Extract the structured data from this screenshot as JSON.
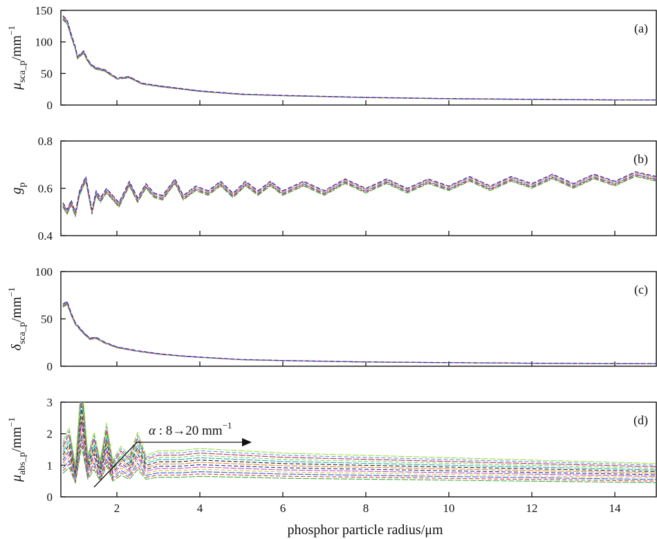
{
  "chart_data": [
    {
      "panel": "(a)",
      "type": "line",
      "ylabel": {
        "base": "μ",
        "sub": "sca_p",
        "unit": "/mm",
        "sup": "−1"
      },
      "ylim": [
        0,
        150
      ],
      "yticks": [
        0,
        50,
        100,
        150
      ],
      "xlim": [
        0.65,
        15
      ],
      "xticks": [
        2,
        4,
        6,
        8,
        10,
        12,
        14
      ],
      "grid": false,
      "series": [
        {
          "x": [
            0.7,
            0.8,
            0.9,
            1.0,
            1.05,
            1.1,
            1.2,
            1.3,
            1.4,
            1.5,
            1.7,
            2.0,
            2.3,
            2.6,
            3.0,
            3.5,
            4.0,
            5.0,
            6.0,
            8.0,
            10.0,
            12.0,
            14.0,
            15.0
          ],
          "y": [
            138,
            132,
            110,
            90,
            75,
            78,
            84,
            70,
            62,
            58,
            55,
            42,
            44,
            34,
            30,
            26,
            22,
            17,
            15,
            12,
            10,
            9,
            8,
            8
          ]
        }
      ]
    },
    {
      "panel": "(b)",
      "type": "line",
      "ylabel": {
        "base": "g",
        "sub": "p",
        "unit": "",
        "sup": ""
      },
      "ylim": [
        0.4,
        0.8
      ],
      "yticks": [
        0.4,
        0.6,
        0.8
      ],
      "ytick_labels": [
        "0.4",
        "0.6",
        "0.8"
      ],
      "xlim": [
        0.65,
        15
      ],
      "xticks": [
        2,
        4,
        6,
        8,
        10,
        12,
        14
      ],
      "grid": false,
      "series": [
        {
          "x": [
            0.7,
            0.8,
            0.9,
            1.0,
            1.1,
            1.25,
            1.4,
            1.5,
            1.6,
            1.75,
            1.9,
            2.05,
            2.3,
            2.5,
            2.7,
            2.9,
            3.1,
            3.4,
            3.6,
            3.9,
            4.2,
            4.5,
            4.8,
            5.1,
            5.4,
            5.7,
            6.0,
            6.5,
            7.0,
            7.5,
            8.0,
            8.5,
            9.0,
            9.5,
            10.0,
            10.5,
            11.0,
            11.5,
            12.0,
            12.5,
            13.0,
            13.5,
            14.0,
            14.5,
            15.0
          ],
          "y": [
            0.53,
            0.5,
            0.54,
            0.49,
            0.58,
            0.64,
            0.5,
            0.58,
            0.55,
            0.59,
            0.56,
            0.53,
            0.62,
            0.55,
            0.61,
            0.57,
            0.56,
            0.63,
            0.56,
            0.6,
            0.58,
            0.62,
            0.57,
            0.62,
            0.58,
            0.62,
            0.58,
            0.62,
            0.58,
            0.63,
            0.59,
            0.63,
            0.59,
            0.63,
            0.6,
            0.64,
            0.6,
            0.64,
            0.61,
            0.65,
            0.61,
            0.65,
            0.62,
            0.66,
            0.64
          ]
        }
      ]
    },
    {
      "panel": "(c)",
      "type": "line",
      "ylabel": {
        "base": "δ",
        "sub": "sca_p",
        "unit": "/mm",
        "sup": "−1"
      },
      "ylim": [
        0,
        100
      ],
      "yticks": [
        0,
        50,
        100
      ],
      "xlim": [
        0.65,
        15
      ],
      "xticks": [
        2,
        4,
        6,
        8,
        10,
        12,
        14
      ],
      "grid": false,
      "series": [
        {
          "x": [
            0.7,
            0.8,
            0.9,
            1.0,
            1.1,
            1.2,
            1.35,
            1.5,
            1.7,
            2.0,
            2.5,
            3.0,
            3.5,
            4.0,
            5.0,
            6.0,
            8.0,
            10.0,
            12.0,
            14.0,
            15.0
          ],
          "y": [
            64,
            67,
            55,
            45,
            40,
            35,
            29,
            30,
            25,
            20,
            16,
            13,
            11,
            9.5,
            7,
            6,
            4.5,
            3.8,
            3.2,
            2.8,
            2.6
          ]
        }
      ]
    },
    {
      "panel": "(d)",
      "type": "line",
      "ylabel": {
        "base": "μ",
        "sub": "abs_p",
        "unit": "/mm",
        "sup": "−1"
      },
      "xlabel": "phosphor particle radius/μm",
      "ylim": [
        0,
        3
      ],
      "yticks": [
        0,
        1,
        2,
        3
      ],
      "xlim": [
        0.65,
        15
      ],
      "xticks": [
        2,
        4,
        6,
        8,
        10,
        12,
        14
      ],
      "grid": false,
      "annotation": {
        "text": "α : 8→20 mm",
        "sup": "−1"
      },
      "series_range": {
        "from_alpha": 8,
        "to_alpha": 20
      },
      "series": [
        {
          "x": [
            0.7,
            0.85,
            1.0,
            1.15,
            1.3,
            1.45,
            1.6,
            1.75,
            1.9,
            2.1,
            2.3,
            2.5,
            2.7,
            3.0,
            3.5,
            4.0,
            5.0,
            6.0,
            8.0,
            10.0,
            12.0,
            14.0,
            15.0
          ],
          "y": [
            1.2,
            1.5,
            0.7,
            2.6,
            0.9,
            1.4,
            0.8,
            1.6,
            0.8,
            1.1,
            0.9,
            1.4,
            0.9,
            1.0,
            1.0,
            1.05,
            1.0,
            0.95,
            0.9,
            0.85,
            0.8,
            0.75,
            0.72
          ]
        }
      ]
    }
  ]
}
